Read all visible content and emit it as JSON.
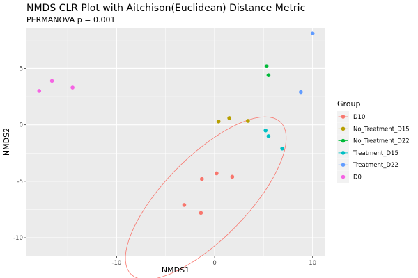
{
  "chart_data": {
    "type": "scatter",
    "title": "NMDS CLR Plot with Aitchison(Euclidean) Distance Metric",
    "subtitle": "PERMANOVA p = 0.001",
    "xlabel": "NMDS1",
    "ylabel": "NMDS2",
    "xlim": [
      -19.2,
      11.3
    ],
    "ylim": [
      -11.6,
      8.6
    ],
    "xticks": [
      -10,
      0,
      10
    ],
    "yticks": [
      5,
      0,
      -5,
      -10
    ],
    "xtick_labels": [
      "-10",
      "0",
      "10"
    ],
    "ytick_labels": [
      "5",
      "0",
      "-5",
      "-10"
    ],
    "grid": true,
    "legend_position": "right",
    "legend_title": "Group",
    "series": [
      {
        "name": "D10",
        "color": "#F8766D",
        "points": [
          [
            -1.3,
            -4.8
          ],
          [
            0.2,
            -4.3
          ],
          [
            1.8,
            -4.6
          ],
          [
            -3.1,
            -7.1
          ],
          [
            -1.4,
            -7.8
          ]
        ]
      },
      {
        "name": "No_Treatment_D15",
        "color": "#B79F00",
        "points": [
          [
            0.4,
            0.3
          ],
          [
            1.5,
            0.6
          ],
          [
            3.4,
            0.35
          ]
        ]
      },
      {
        "name": "No_Treatment_D22",
        "color": "#00BA38",
        "points": [
          [
            5.3,
            5.2
          ],
          [
            5.5,
            4.4
          ]
        ]
      },
      {
        "name": "Treatment_D15",
        "color": "#00BFC4",
        "points": [
          [
            5.2,
            -0.5
          ],
          [
            5.5,
            -1.0
          ],
          [
            6.9,
            -2.1
          ]
        ]
      },
      {
        "name": "Treatment_D22",
        "color": "#619CFF",
        "points": [
          [
            8.8,
            2.9
          ],
          [
            10.0,
            8.1
          ]
        ]
      },
      {
        "name": "D0",
        "color": "#F564E3",
        "points": [
          [
            -17.9,
            3.0
          ],
          [
            -16.6,
            3.9
          ],
          [
            -14.5,
            3.3
          ]
        ]
      }
    ],
    "ellipses": [
      {
        "series": "D10",
        "color": "#F8766D",
        "center": [
          -0.9,
          -6.5
        ],
        "semi_major": 10.2,
        "semi_minor": 3.9,
        "angle_deg": 40
      }
    ]
  }
}
